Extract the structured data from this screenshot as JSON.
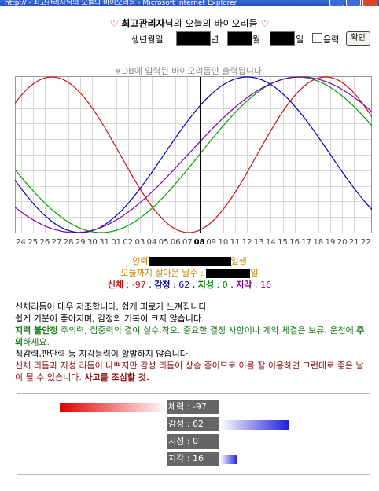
{
  "window": {
    "title": "http://                   - 최고관리자님의 오늘의 바이오리듬 - Microsoft Internet Explorer"
  },
  "header": {
    "heart_left": "♡",
    "user": "최고관리자",
    "title_suffix": "님의 오늘의 바이오리듬",
    "heart_right": "♡"
  },
  "form": {
    "birth_label": "생년월일",
    "year_suffix": "년",
    "month_suffix": "월",
    "day_suffix": "일",
    "lunar_label": "음력",
    "submit_label": "확인"
  },
  "notice": "※DB에 입력된 바이오리듬만 출력됩니다.",
  "chart_data": {
    "type": "line",
    "x_ticks": [
      "24",
      "25",
      "26",
      "27",
      "28",
      "29",
      "30",
      "31",
      "01",
      "02",
      "03",
      "04",
      "05",
      "06",
      "07",
      "08",
      "09",
      "10",
      "11",
      "12",
      "13",
      "14",
      "15",
      "16",
      "17",
      "18",
      "19",
      "20",
      "21",
      "22"
    ],
    "today": "08",
    "ylim": [
      -100,
      100
    ],
    "grid": true,
    "series": [
      {
        "key": "physical",
        "period": 23,
        "today_value": -97,
        "color": "#d01010"
      },
      {
        "key": "emotional",
        "period": 28,
        "today_value": 62,
        "color": "#0000c0"
      },
      {
        "key": "intellectual",
        "period": 33,
        "today_value": 0,
        "color": "#00a000"
      },
      {
        "key": "intuitive",
        "period": 38,
        "today_value": 16,
        "color": "#8000b0"
      }
    ]
  },
  "summary": {
    "lunar_prefix": "양력",
    "birth_suffix": "일생",
    "days_prefix": "오늘까지 살아온 날수 :",
    "days_suffix": "일",
    "physical_label": "신체",
    "physical_value": "-97",
    "emotional_label": "감정",
    "emotional_value": "62",
    "intellectual_label": "지성",
    "intellectual_value": "0",
    "intuitive_label": "지각",
    "intuitive_value": "16"
  },
  "description": {
    "line1": "신체리듬이 매우 저조합니다. 쉽게 피로가 느껴집니다.",
    "line2": "쉽게 기분이 좋아지며, 감정의 기복이 크지 않습니다.",
    "line3_bold": "지력 불안정",
    "line3_rest_a": " 주의력, 집중력의 결여 실수.착오. 중요한 결정 사항이나 계약 체결은 보류. 운전에 ",
    "line3_bold2": "주의",
    "line3_rest_b": "하세요.",
    "line4": "직감력,판단력 등 지각능력이 활발하지 않습니다.",
    "line5": "신체 리듬과 지성 리듬이 나쁘지만 감성 리듬이 상승 중이므로 이를 잘 이용하면 그런대로 좋은 날이 될 수 있습니다. ",
    "line5_bold": "사고를 조심할 것."
  },
  "bars": [
    {
      "label": "체력 : -97",
      "value": -97,
      "color": "#e00000"
    },
    {
      "label": "감성 : 62",
      "value": 62,
      "color": "#2020e0"
    },
    {
      "label": "지성 : 0",
      "value": 0,
      "color": "#00a000"
    },
    {
      "label": "지각 : 16",
      "value": 16,
      "color": "#2020e0"
    }
  ]
}
